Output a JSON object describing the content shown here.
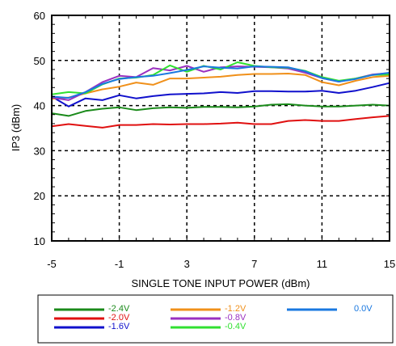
{
  "chart_data": {
    "type": "line",
    "title": "",
    "xlabel": "SINGLE TONE INPUT POWER (dBm)",
    "ylabel": "IP3 (dBm)",
    "xlim": [
      -5,
      15
    ],
    "ylim": [
      10,
      60
    ],
    "xticks": [
      -5,
      -1,
      3,
      7,
      11,
      15
    ],
    "yticks": [
      10,
      20,
      30,
      40,
      50,
      60
    ],
    "grid": true,
    "legend_position": "bottom",
    "x": [
      -5,
      -4,
      -3,
      -2,
      -1,
      0,
      1,
      2,
      3,
      4,
      5,
      6,
      7,
      8,
      9,
      10,
      11,
      12,
      13,
      14,
      15
    ],
    "series": [
      {
        "name": "-2.4V",
        "color": "#1a8a1a",
        "values": [
          38.3,
          37.7,
          38.8,
          39.3,
          39.6,
          39.0,
          39.4,
          39.6,
          39.5,
          39.7,
          39.7,
          39.6,
          39.8,
          40.2,
          40.3,
          40.0,
          39.8,
          39.8,
          40.0,
          40.2,
          40.0
        ]
      },
      {
        "name": "-2.0V",
        "color": "#e01010",
        "values": [
          35.4,
          35.9,
          35.5,
          35.1,
          35.7,
          35.7,
          35.9,
          35.8,
          35.9,
          35.9,
          36.0,
          36.2,
          35.9,
          35.9,
          36.6,
          36.8,
          36.6,
          36.6,
          37.0,
          37.4,
          37.7
        ]
      },
      {
        "name": "-1.6V",
        "color": "#1010cc",
        "values": [
          42.0,
          39.8,
          41.6,
          41.2,
          42.3,
          41.6,
          42.1,
          42.5,
          42.6,
          42.7,
          43.0,
          42.8,
          43.2,
          43.2,
          43.1,
          43.1,
          43.3,
          42.8,
          43.3,
          44.1,
          45.0
        ]
      },
      {
        "name": "-1.2V",
        "color": "#f0901a",
        "values": [
          41.5,
          41.8,
          42.7,
          43.6,
          44.2,
          45.1,
          44.6,
          46.0,
          46.0,
          46.2,
          46.4,
          46.8,
          47.0,
          47.0,
          47.1,
          46.8,
          45.2,
          44.5,
          45.5,
          46.3,
          46.6
        ]
      },
      {
        "name": "-0.8V",
        "color": "#9a30c0",
        "values": [
          41.8,
          41.2,
          43.0,
          45.2,
          46.6,
          46.3,
          48.3,
          47.8,
          48.8,
          47.5,
          48.5,
          48.7,
          48.6,
          48.5,
          48.2,
          47.3,
          46.1,
          45.3,
          46.0,
          46.9,
          47.2
        ]
      },
      {
        "name": "-0.4V",
        "color": "#30e030",
        "values": [
          42.5,
          43.0,
          42.7,
          44.7,
          46.0,
          46.2,
          46.8,
          48.9,
          47.5,
          48.8,
          48.0,
          49.6,
          48.8,
          48.5,
          48.4,
          47.7,
          46.3,
          45.5,
          46.0,
          46.8,
          46.9
        ]
      },
      {
        "name": "0.0V",
        "color": "#1a78e0",
        "values": [
          42.0,
          41.7,
          43.0,
          44.8,
          45.9,
          46.3,
          46.6,
          47.2,
          47.9,
          48.7,
          48.4,
          48.2,
          48.7,
          48.6,
          48.5,
          47.6,
          46.1,
          45.3,
          45.9,
          46.8,
          47.3
        ]
      }
    ]
  }
}
